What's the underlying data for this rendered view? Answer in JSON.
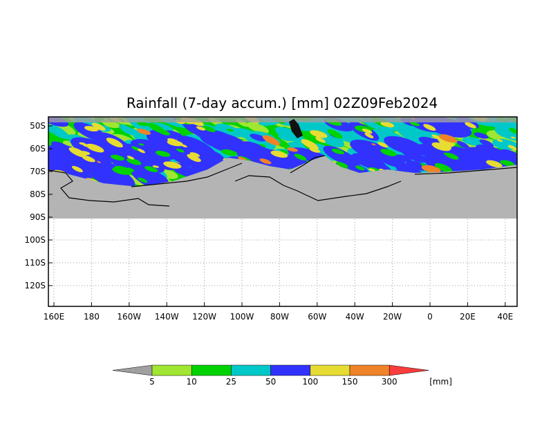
{
  "title": "Rainfall (7-day accum.) [mm] 02Z09Feb2024",
  "lat_labels": [
    "50S",
    "60S",
    "70S",
    "80S",
    "90S",
    "100S",
    "110S",
    "120S"
  ],
  "lon_labels": [
    "160E",
    "180",
    "160W",
    "140W",
    "120W",
    "100W",
    "80W",
    "60W",
    "40W",
    "20W",
    "0",
    "20E",
    "40E"
  ],
  "legend": {
    "levels": [
      5,
      10,
      25,
      50,
      100,
      150,
      300
    ],
    "colors": [
      "#a0a0a0",
      "#a0e632",
      "#00d200",
      "#00c8c8",
      "#3232ff",
      "#e6dc32",
      "#f08228",
      "#fa3c3c"
    ],
    "unit": "[mm]"
  }
}
